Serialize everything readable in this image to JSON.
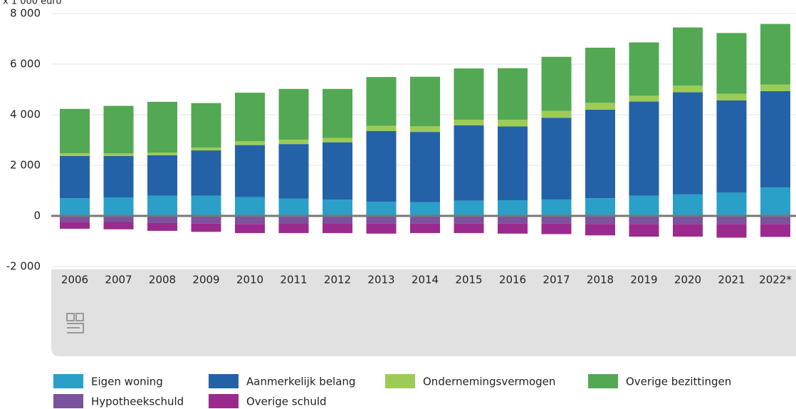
{
  "chart_data": {
    "type": "stacked_bar",
    "y_label": "x 1 000 euro",
    "categories": [
      "2006",
      "2007",
      "2008",
      "2009",
      "2010",
      "2011",
      "2012",
      "2013",
      "2014",
      "2015",
      "2016",
      "2017",
      "2018",
      "2019",
      "2020",
      "2021",
      "2022*"
    ],
    "series": [
      {
        "name": "Eigen woning",
        "color": "#2aa0c8",
        "values": [
          700,
          730,
          800,
          800,
          740,
          680,
          640,
          560,
          540,
          600,
          620,
          650,
          700,
          800,
          850,
          920,
          1120
        ]
      },
      {
        "name": "Aanmerkelijk belang",
        "color": "#2462a8",
        "values": [
          1670,
          1640,
          1600,
          1790,
          2060,
          2160,
          2270,
          2800,
          2780,
          2980,
          2920,
          3230,
          3500,
          3720,
          4040,
          3650,
          3810
        ]
      },
      {
        "name": "Ondernemingsvermogen",
        "color": "#9ccc55",
        "values": [
          110,
          100,
          100,
          110,
          150,
          170,
          170,
          200,
          220,
          220,
          260,
          270,
          270,
          230,
          260,
          260,
          260
        ]
      },
      {
        "name": "Overige bezittingen",
        "color": "#53a853",
        "values": [
          1750,
          1880,
          2010,
          1760,
          1920,
          2010,
          1940,
          1930,
          1960,
          2030,
          2040,
          2140,
          2180,
          2110,
          2300,
          2400,
          2400
        ]
      },
      {
        "name": "Hypotheekschuld",
        "color": "#7b529e",
        "values": [
          -230,
          -240,
          -280,
          -300,
          -320,
          -310,
          -310,
          -300,
          -300,
          -300,
          -300,
          -300,
          -320,
          -320,
          -320,
          -320,
          -320
        ]
      },
      {
        "name": "Overige schuld",
        "color": "#9b2a8e",
        "values": [
          -280,
          -290,
          -310,
          -330,
          -360,
          -370,
          -370,
          -400,
          -380,
          -380,
          -400,
          -420,
          -450,
          -500,
          -500,
          -540,
          -510
        ]
      }
    ],
    "ylim": [
      -2000,
      8000
    ],
    "yticks": [
      {
        "value": -2000,
        "label": "-2 000"
      },
      0,
      {
        "value": 2000,
        "label": "2 000"
      },
      {
        "value": 4000,
        "label": "4 000"
      },
      {
        "value": 6000,
        "label": "6 000"
      },
      {
        "value": 8000,
        "label": "8 000"
      }
    ],
    "grid": true
  }
}
